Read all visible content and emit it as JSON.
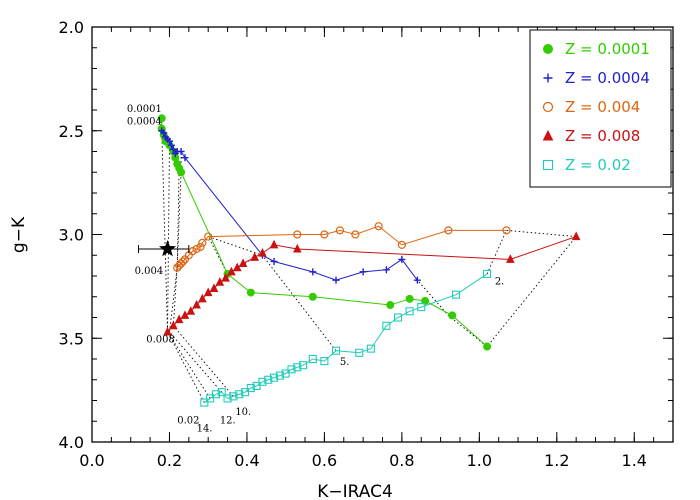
{
  "chart_data": {
    "type": "scatter",
    "xlabel": "K−IRAC4",
    "ylabel": "g−K",
    "xlim": [
      0.0,
      1.5
    ],
    "ylim": [
      4.0,
      2.0
    ],
    "y_inverted": true,
    "xticks": [
      "0.0",
      "0.2",
      "0.4",
      "0.6",
      "0.8",
      "1.0",
      "1.2",
      "1.4"
    ],
    "yticks": [
      "2.0",
      "2.5",
      "3.0",
      "3.5",
      "4.0"
    ],
    "legend_position": "top-right",
    "series": [
      {
        "name": "Z = 0.0001",
        "color": "#33cc00",
        "marker": "filled-circle",
        "start_label": "0.0001",
        "points": [
          [
            0.18,
            2.44
          ],
          [
            0.18,
            2.49
          ],
          [
            0.185,
            2.52
          ],
          [
            0.19,
            2.55
          ],
          [
            0.2,
            2.57
          ],
          [
            0.21,
            2.6
          ],
          [
            0.215,
            2.63
          ],
          [
            0.22,
            2.66
          ],
          [
            0.225,
            2.68
          ],
          [
            0.23,
            2.7
          ],
          [
            0.35,
            3.19
          ],
          [
            0.41,
            3.28
          ],
          [
            0.57,
            3.3
          ],
          [
            0.77,
            3.34
          ],
          [
            0.82,
            3.31
          ],
          [
            0.86,
            3.32
          ],
          [
            0.93,
            3.39
          ],
          [
            1.02,
            3.54
          ]
        ]
      },
      {
        "name": "Z = 0.0004",
        "color": "#2020cc",
        "marker": "plus",
        "start_label": "0.0004",
        "points": [
          [
            0.18,
            2.5
          ],
          [
            0.185,
            2.51
          ],
          [
            0.19,
            2.53
          ],
          [
            0.195,
            2.54
          ],
          [
            0.2,
            2.55
          ],
          [
            0.205,
            2.57
          ],
          [
            0.21,
            2.59
          ],
          [
            0.215,
            2.61
          ],
          [
            0.22,
            2.6
          ],
          [
            0.23,
            2.6
          ],
          [
            0.24,
            2.63
          ],
          [
            0.44,
            3.1
          ],
          [
            0.47,
            3.13
          ],
          [
            0.57,
            3.18
          ],
          [
            0.63,
            3.22
          ],
          [
            0.7,
            3.18
          ],
          [
            0.76,
            3.17
          ],
          [
            0.8,
            3.12
          ],
          [
            0.84,
            3.22
          ]
        ]
      },
      {
        "name": "Z = 0.004",
        "color": "#dd6611",
        "marker": "open-circle",
        "start_label": "0.004",
        "points": [
          [
            0.22,
            3.16
          ],
          [
            0.225,
            3.15
          ],
          [
            0.23,
            3.14
          ],
          [
            0.235,
            3.13
          ],
          [
            0.24,
            3.12
          ],
          [
            0.25,
            3.1
          ],
          [
            0.26,
            3.08
          ],
          [
            0.27,
            3.07
          ],
          [
            0.28,
            3.06
          ],
          [
            0.285,
            3.04
          ],
          [
            0.3,
            3.01
          ],
          [
            0.53,
            3.0
          ],
          [
            0.6,
            3.0
          ],
          [
            0.64,
            2.98
          ],
          [
            0.68,
            3.0
          ],
          [
            0.74,
            2.96
          ],
          [
            0.8,
            3.05
          ],
          [
            0.92,
            2.98
          ],
          [
            1.07,
            2.98
          ]
        ]
      },
      {
        "name": "Z = 0.008",
        "color": "#cc1111",
        "marker": "filled-triangle",
        "start_label": "0.008",
        "points": [
          [
            0.195,
            3.47
          ],
          [
            0.21,
            3.44
          ],
          [
            0.225,
            3.41
          ],
          [
            0.24,
            3.39
          ],
          [
            0.255,
            3.37
          ],
          [
            0.27,
            3.34
          ],
          [
            0.285,
            3.31
          ],
          [
            0.3,
            3.28
          ],
          [
            0.315,
            3.26
          ],
          [
            0.33,
            3.23
          ],
          [
            0.345,
            3.21
          ],
          [
            0.36,
            3.18
          ],
          [
            0.375,
            3.16
          ],
          [
            0.39,
            3.14
          ],
          [
            0.42,
            3.11
          ],
          [
            0.44,
            3.09
          ],
          [
            0.47,
            3.05
          ],
          [
            0.53,
            3.07
          ],
          [
            1.08,
            3.12
          ],
          [
            1.25,
            3.01
          ]
        ]
      },
      {
        "name": "Z = 0.02",
        "color": "#22ccbb",
        "marker": "open-square",
        "start_label": "0.02",
        "points": [
          [
            0.29,
            3.81
          ],
          [
            0.305,
            3.79
          ],
          [
            0.32,
            3.77
          ],
          [
            0.335,
            3.76
          ],
          [
            0.35,
            3.79
          ],
          [
            0.365,
            3.78
          ],
          [
            0.38,
            3.77
          ],
          [
            0.395,
            3.76
          ],
          [
            0.41,
            3.74
          ],
          [
            0.425,
            3.73
          ],
          [
            0.44,
            3.71
          ],
          [
            0.455,
            3.7
          ],
          [
            0.47,
            3.69
          ],
          [
            0.485,
            3.68
          ],
          [
            0.5,
            3.67
          ],
          [
            0.515,
            3.65
          ],
          [
            0.53,
            3.64
          ],
          [
            0.545,
            3.63
          ],
          [
            0.57,
            3.6
          ],
          [
            0.6,
            3.61
          ],
          [
            0.63,
            3.56
          ],
          [
            0.69,
            3.57
          ],
          [
            0.72,
            3.55
          ],
          [
            0.76,
            3.44
          ],
          [
            0.79,
            3.4
          ],
          [
            0.82,
            3.37
          ],
          [
            0.85,
            3.35
          ],
          [
            0.94,
            3.29
          ],
          [
            1.02,
            3.19
          ]
        ]
      }
    ],
    "isochrones": [
      {
        "label": "2.",
        "points": [
          [
            1.02,
            3.19
          ],
          [
            1.07,
            2.98
          ],
          [
            1.25,
            3.01
          ],
          [
            1.02,
            3.54
          ],
          [
            0.92,
            3.39
          ],
          [
            0.84,
            3.22
          ]
        ]
      },
      {
        "label": "5.",
        "points": [
          [
            0.63,
            3.56
          ],
          [
            0.44,
            3.1
          ],
          [
            0.3,
            3.01
          ],
          [
            0.35,
            3.19
          ],
          [
            0.42,
            3.11
          ]
        ]
      },
      {
        "label": "10.",
        "points": [
          [
            0.365,
            3.78
          ],
          [
            0.21,
            3.44
          ],
          [
            0.22,
            3.15
          ],
          [
            0.23,
            2.7
          ],
          [
            0.23,
            2.6
          ]
        ]
      },
      {
        "label": "12.",
        "points": [
          [
            0.335,
            3.76
          ],
          [
            0.2,
            3.47
          ],
          [
            0.22,
            3.16
          ],
          [
            0.225,
            2.68
          ],
          [
            0.215,
            2.61
          ]
        ]
      },
      {
        "label": "14.",
        "points": [
          [
            0.305,
            3.79
          ],
          [
            0.195,
            3.47
          ],
          [
            0.2,
            2.57
          ],
          [
            0.19,
            2.52
          ]
        ]
      },
      {
        "label": "",
        "points": [
          [
            0.29,
            3.81
          ],
          [
            0.195,
            3.47
          ],
          [
            0.18,
            2.49
          ],
          [
            0.18,
            2.44
          ]
        ]
      }
    ],
    "observed_point": {
      "x": 0.195,
      "y": 3.07,
      "xerr": [
        0.12,
        0.25
      ],
      "marker": "filled-star"
    },
    "label_positions": {
      "2.": [
        1.04,
        3.24
      ],
      "5.": [
        0.64,
        3.63
      ],
      "10.": [
        0.37,
        3.87
      ],
      "12.": [
        0.33,
        3.91
      ],
      "14.": [
        0.27,
        3.95
      ],
      "0.02": [
        0.22,
        3.91
      ],
      "0.008": [
        0.14,
        3.52
      ],
      "0.004": [
        0.11,
        3.19
      ],
      "0.0001": [
        0.09,
        2.41
      ],
      "0.0004": [
        0.09,
        2.47
      ]
    }
  }
}
